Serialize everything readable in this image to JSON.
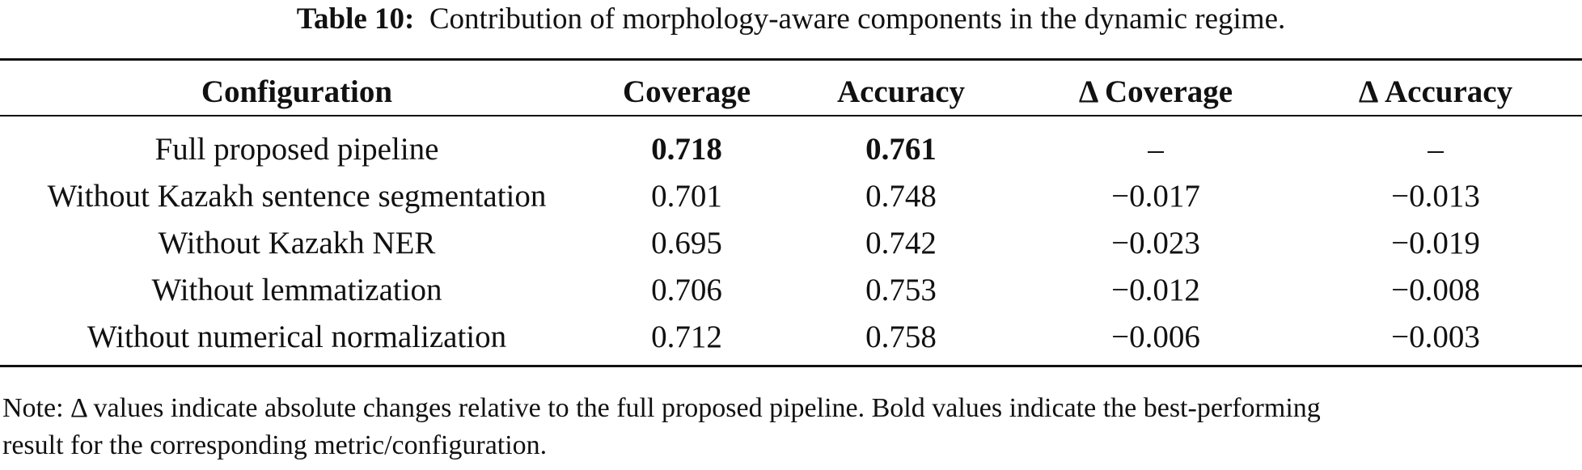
{
  "caption": {
    "label": "Table 10:",
    "text": "Contribution of morphology-aware components in the dynamic regime."
  },
  "table": {
    "headers": [
      "Configuration",
      "Coverage",
      "Accuracy",
      "Δ Coverage",
      "Δ Accuracy"
    ],
    "rows": [
      {
        "configuration": "Full proposed pipeline",
        "coverage": "0.718",
        "accuracy": "0.761",
        "delta_coverage": "–",
        "delta_accuracy": "–",
        "bold_values": true
      },
      {
        "configuration": "Without Kazakh sentence segmentation",
        "coverage": "0.701",
        "accuracy": "0.748",
        "delta_coverage": "−0.017",
        "delta_accuracy": "−0.013",
        "bold_values": false
      },
      {
        "configuration": "Without Kazakh NER",
        "coverage": "0.695",
        "accuracy": "0.742",
        "delta_coverage": "−0.023",
        "delta_accuracy": "−0.019",
        "bold_values": false
      },
      {
        "configuration": "Without lemmatization",
        "coverage": "0.706",
        "accuracy": "0.753",
        "delta_coverage": "−0.012",
        "delta_accuracy": "−0.008",
        "bold_values": false
      },
      {
        "configuration": "Without numerical normalization",
        "coverage": "0.712",
        "accuracy": "0.758",
        "delta_coverage": "−0.006",
        "delta_accuracy": "−0.003",
        "bold_values": false
      }
    ]
  },
  "note": {
    "line1": "Note: Δ values indicate absolute changes relative to the full proposed pipeline. Bold values indicate the best-performing",
    "line2": "result for the corresponding metric/configuration."
  }
}
